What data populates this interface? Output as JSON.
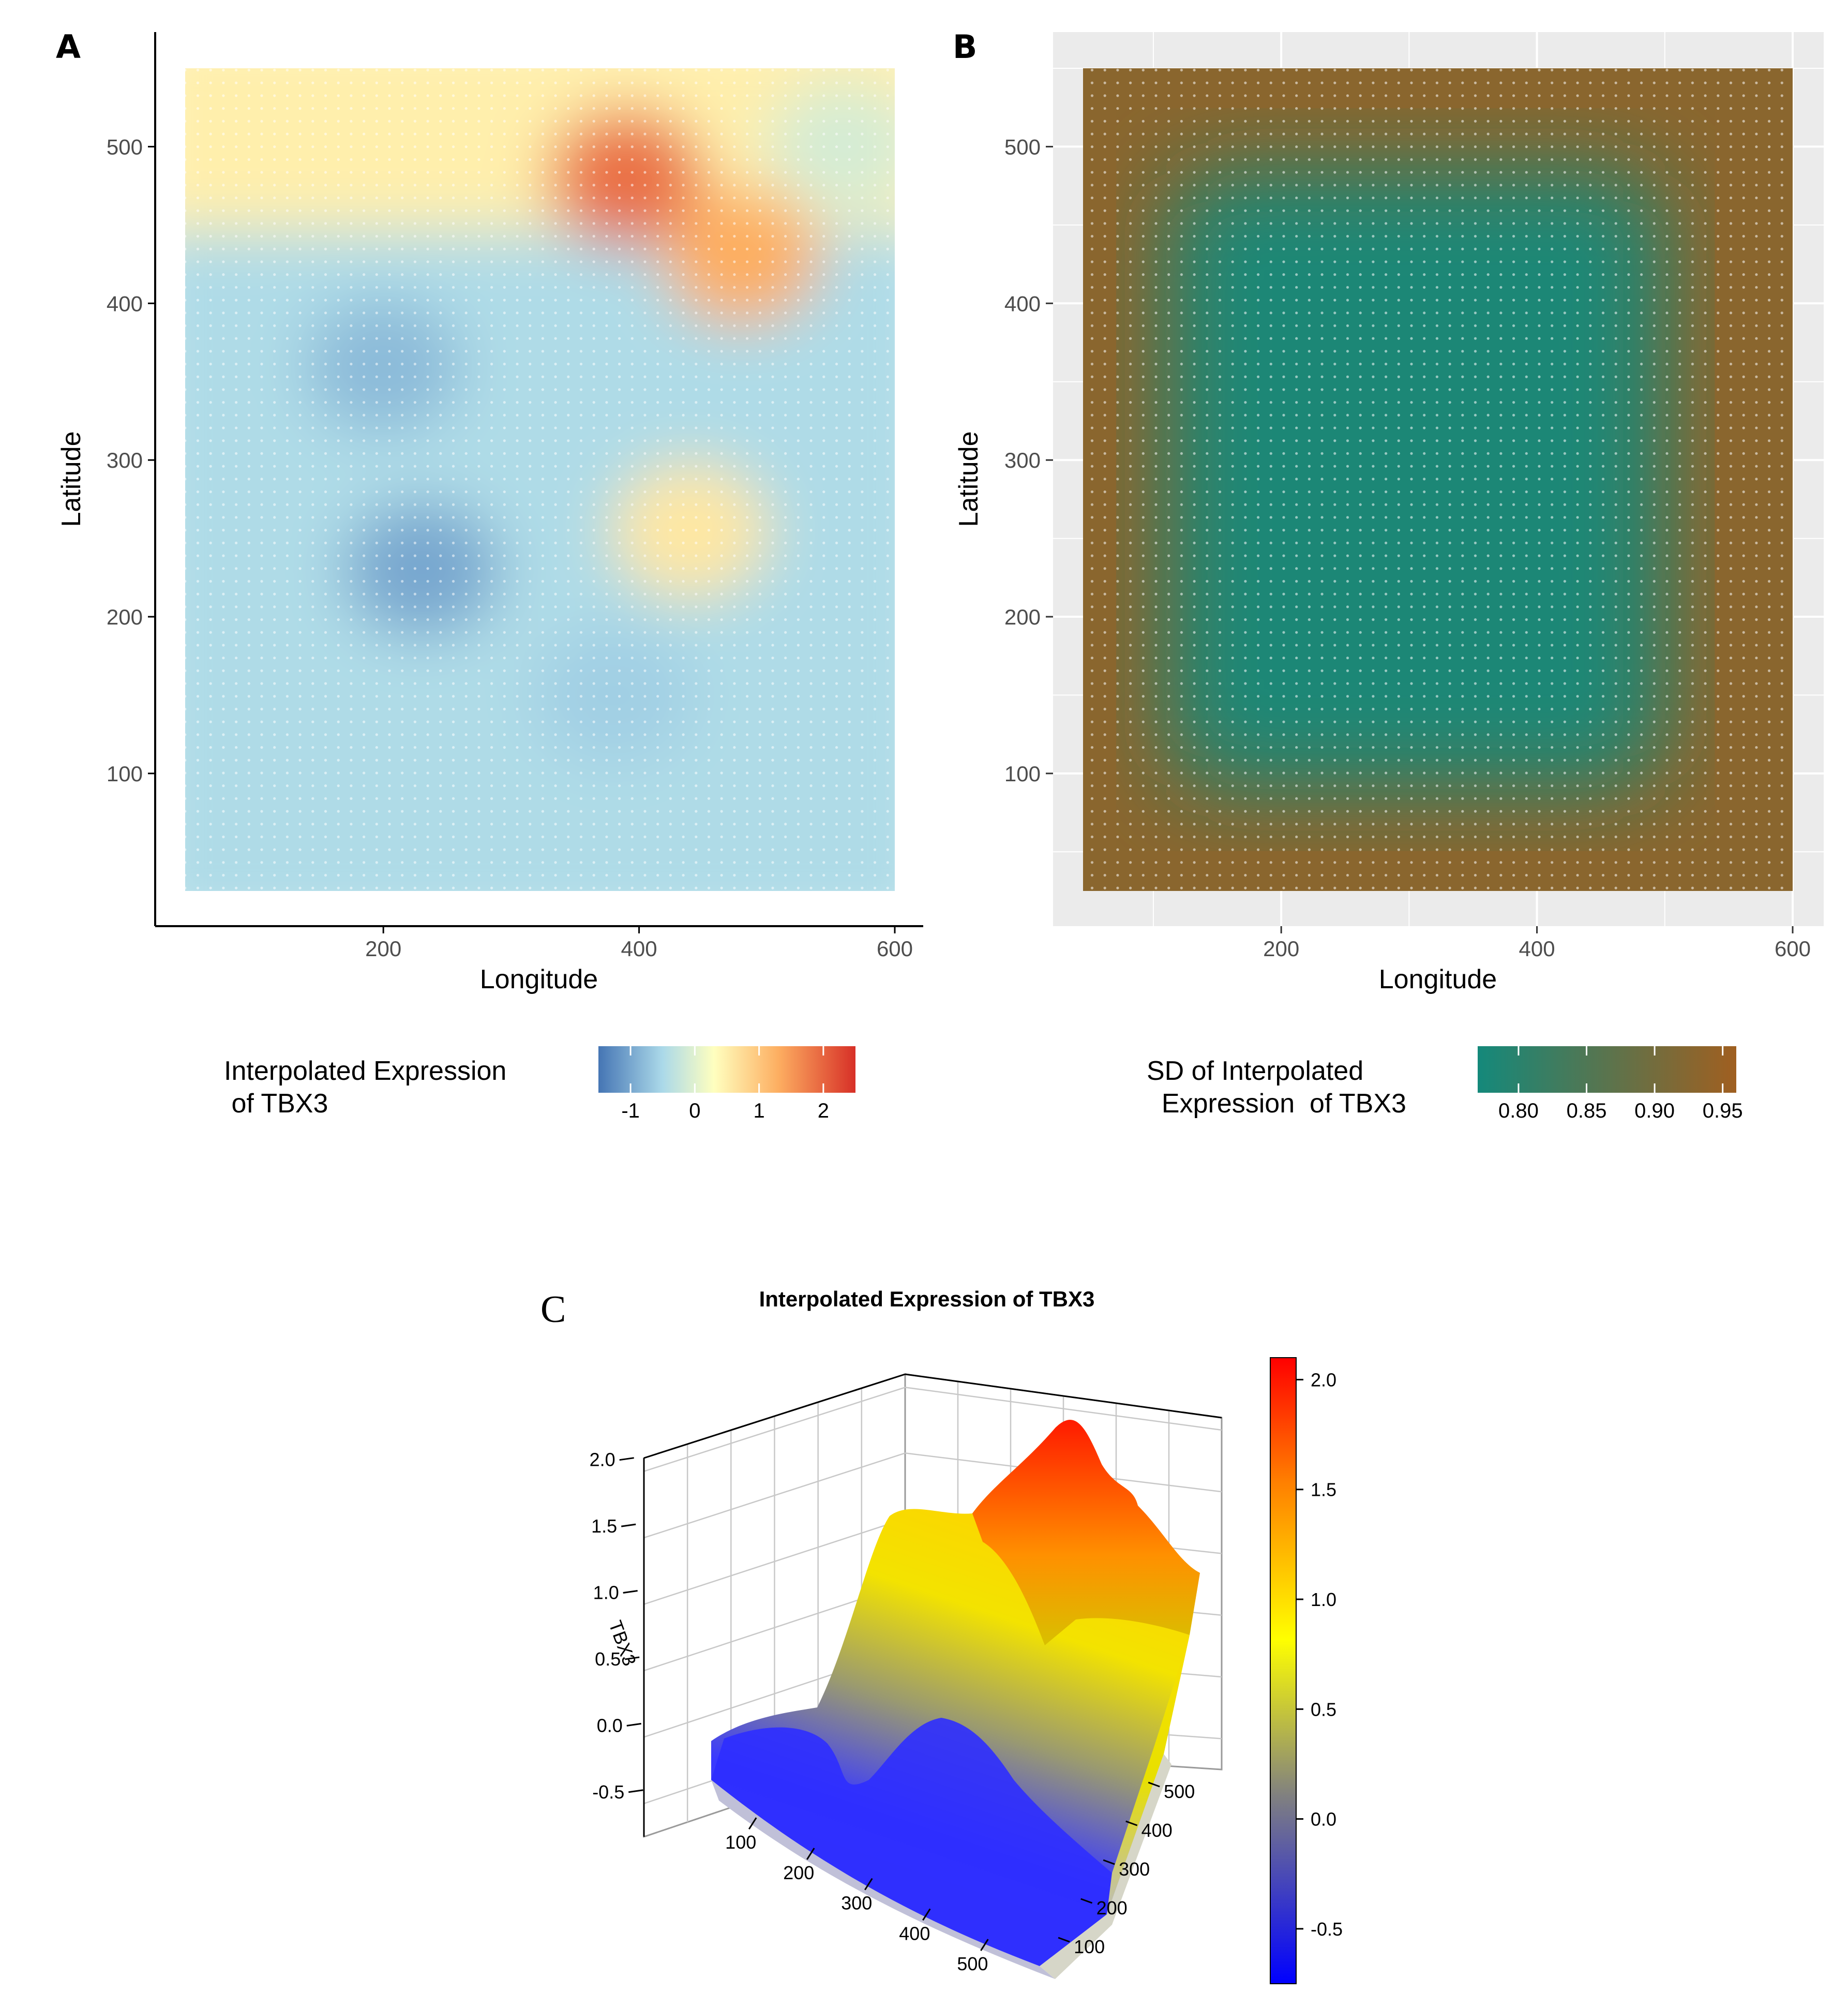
{
  "panels": {
    "a": {
      "letter": "A",
      "xlabel": "Longitude",
      "ylabel": "Latitude",
      "legend_title": [
        "Interpolated Expression",
        " of TBX3"
      ],
      "legend_ticks": [
        "-1",
        "0",
        "1",
        "2"
      ]
    },
    "b": {
      "letter": "B",
      "xlabel": "Longitude",
      "ylabel": "Latitude",
      "legend_title": [
        "SD of Interpolated",
        "  Expression  of TBX3"
      ],
      "legend_ticks": [
        "0.80",
        "0.85",
        "0.90",
        "0.95"
      ]
    },
    "c": {
      "letter": "C",
      "title": "Interpolated Expression of TBX3",
      "zlabel": "TBX3"
    }
  },
  "chart_data": [
    {
      "id": "A",
      "type": "heatmap",
      "title": "",
      "xlabel": "Longitude",
      "ylabel": "Latitude",
      "xlim": [
        35,
        620
      ],
      "ylim": [
        2,
        555
      ],
      "xticks": [
        200,
        400,
        600
      ],
      "yticks": [
        100,
        200,
        300,
        400,
        500
      ],
      "x_ticklabels": [
        "200",
        "400",
        "600"
      ],
      "y_ticklabels": [
        "100",
        "200",
        "300",
        "400",
        "500"
      ],
      "grid": false,
      "data_extent": {
        "x": [
          45,
          600
        ],
        "y": [
          25,
          550
        ]
      },
      "colorbar": {
        "title": "Interpolated Expression\n of TBX3",
        "range": [
          -1.5,
          2.5
        ],
        "ticks": [
          -1,
          0,
          1,
          2
        ],
        "colors": [
          "#4575b4",
          "#abd9e9",
          "#ffffbf",
          "#fdae61",
          "#d73027"
        ]
      },
      "hotspots": [
        {
          "x": 390,
          "y": 480,
          "value": 2.0
        },
        {
          "x": 480,
          "y": 430,
          "value": 1.5
        },
        {
          "x": 440,
          "y": 255,
          "value": 0.8
        },
        {
          "x": 560,
          "y": 500,
          "value": 0.0
        },
        {
          "x": 230,
          "y": 230,
          "value": -1.0
        },
        {
          "x": 200,
          "y": 360,
          "value": -0.8
        },
        {
          "x": 380,
          "y": 150,
          "value": -0.6
        }
      ]
    },
    {
      "id": "B",
      "type": "heatmap",
      "title": "",
      "xlabel": "Longitude",
      "ylabel": "Latitude",
      "xlim": [
        35,
        620
      ],
      "ylim": [
        2,
        555
      ],
      "xticks": [
        200,
        400,
        600
      ],
      "yticks": [
        100,
        200,
        300,
        400,
        500
      ],
      "x_ticklabels": [
        "200",
        "400",
        "600"
      ],
      "y_ticklabels": [
        "100",
        "200",
        "300",
        "400",
        "500"
      ],
      "grid": true,
      "data_extent": {
        "x": [
          45,
          600
        ],
        "y": [
          25,
          550
        ]
      },
      "colorbar": {
        "title": "SD of Interpolated\n Expression  of TBX3",
        "range": [
          0.77,
          0.96
        ],
        "ticks": [
          0.8,
          0.85,
          0.9,
          0.95
        ],
        "colors": [
          "#14897b",
          "#a05f20"
        ]
      },
      "pattern": "SD approx 0.78 in interior, rising to approx 0.95 at edges and corners"
    },
    {
      "id": "C",
      "type": "surface",
      "title": "Interpolated Expression of TBX3",
      "zlabel": "TBX3",
      "z_ticklabels": [
        "-0.5",
        "0.0",
        "0.5",
        "1.0",
        "1.5",
        "2.0"
      ],
      "x_ticklabels": [
        "100",
        "200",
        "300",
        "400",
        "500"
      ],
      "y_ticklabels": [
        "100",
        "200",
        "300",
        "400",
        "500"
      ],
      "colorbar": {
        "range": [
          -0.75,
          2.1
        ],
        "ticks": [
          -0.5,
          0.0,
          0.5,
          1.0,
          1.5,
          2.0
        ],
        "tick_labels": [
          "-0.5",
          "0.0",
          "0.5",
          "1.0",
          "1.5",
          "2.0"
        ],
        "colors": [
          "#0000ff",
          "#808080",
          "#ffff00",
          "#ff8000",
          "#ff0000"
        ]
      },
      "zlim": [
        -0.75,
        2.1
      ]
    }
  ]
}
